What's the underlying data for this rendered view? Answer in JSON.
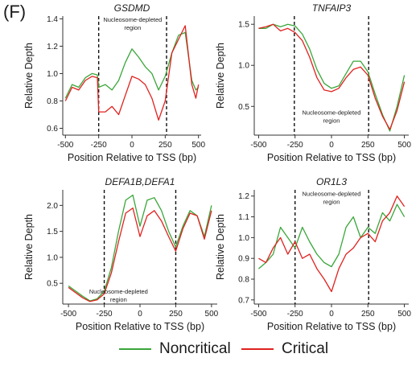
{
  "panel_label": "(F)",
  "colors": {
    "noncritical": "#3aa63a",
    "critical": "#e0221f"
  },
  "legend": [
    {
      "key": "noncritical",
      "label": "Noncritical"
    },
    {
      "key": "critical",
      "label": "Critical"
    }
  ],
  "chart_data": [
    {
      "type": "line",
      "title": "GSDMD",
      "xlabel": "Position Relative to TSS (bp)",
      "ylabel": "Relative Depth",
      "xlim": [
        -520,
        520
      ],
      "ylim": [
        0.55,
        1.42
      ],
      "xticks": [
        -500,
        -250,
        0,
        250,
        500
      ],
      "yticks": [
        0.6,
        0.8,
        1.0,
        1.2,
        1.4
      ],
      "ytick_labels": [
        "0.6",
        "0.8",
        "1.0",
        "1.2",
        "1.4"
      ],
      "vlines": [
        -250,
        260
      ],
      "annotation": {
        "text": [
          "Nucleosome-depleted",
          "region"
        ],
        "x": 5,
        "y": 1.38
      },
      "series": [
        {
          "name": "Noncritical",
          "color_key": "noncritical",
          "x": [
            -500,
            -450,
            -400,
            -350,
            -300,
            -260,
            -250,
            -200,
            -150,
            -100,
            -50,
            0,
            50,
            100,
            150,
            200,
            250,
            300,
            350,
            400,
            450,
            480,
            500
          ],
          "y": [
            0.82,
            0.92,
            0.9,
            0.97,
            1.0,
            0.99,
            0.9,
            0.92,
            0.88,
            0.95,
            1.08,
            1.18,
            1.12,
            1.05,
            1.0,
            0.88,
            0.98,
            1.15,
            1.28,
            1.3,
            0.95,
            0.88,
            0.9
          ]
        },
        {
          "name": "Critical",
          "color_key": "critical",
          "x": [
            -500,
            -450,
            -400,
            -350,
            -300,
            -260,
            -250,
            -200,
            -150,
            -100,
            -50,
            0,
            50,
            100,
            150,
            200,
            250,
            300,
            350,
            400,
            450,
            480,
            500
          ],
          "y": [
            0.8,
            0.9,
            0.88,
            0.95,
            0.98,
            0.97,
            0.72,
            0.72,
            0.76,
            0.7,
            0.84,
            0.98,
            0.96,
            0.92,
            0.82,
            0.66,
            0.8,
            1.15,
            1.25,
            1.35,
            0.92,
            0.82,
            0.92
          ]
        }
      ]
    },
    {
      "type": "line",
      "title": "TNFAIP3",
      "xlabel": "Position Relative to TSS (bp)",
      "ylabel": "Relative Depth",
      "xlim": [
        -530,
        530
      ],
      "ylim": [
        0.15,
        1.6
      ],
      "xticks": [
        -500,
        -250,
        0,
        250,
        500
      ],
      "yticks": [
        0.5,
        1.0,
        1.5
      ],
      "ytick_labels": [
        "0.5",
        "1.0",
        "1.5"
      ],
      "vlines": [
        -255,
        255
      ],
      "annotation": {
        "text": [
          "Nucleosome-depleted",
          "region"
        ],
        "x": 0,
        "y": 0.4
      },
      "series": [
        {
          "name": "Noncritical",
          "color_key": "noncritical",
          "x": [
            -500,
            -450,
            -400,
            -350,
            -300,
            -250,
            -200,
            -150,
            -100,
            -50,
            0,
            50,
            100,
            150,
            200,
            250,
            300,
            350,
            400,
            450,
            500
          ],
          "y": [
            1.45,
            1.45,
            1.5,
            1.47,
            1.5,
            1.48,
            1.38,
            1.2,
            0.95,
            0.78,
            0.72,
            0.75,
            0.9,
            1.05,
            1.05,
            0.92,
            0.65,
            0.4,
            0.2,
            0.5,
            0.88
          ]
        },
        {
          "name": "Critical",
          "color_key": "critical",
          "x": [
            -500,
            -450,
            -400,
            -350,
            -300,
            -250,
            -200,
            -150,
            -100,
            -50,
            0,
            50,
            100,
            150,
            200,
            250,
            300,
            350,
            400,
            450,
            500
          ],
          "y": [
            1.45,
            1.47,
            1.5,
            1.42,
            1.45,
            1.4,
            1.3,
            1.1,
            0.85,
            0.7,
            0.68,
            0.72,
            0.85,
            0.95,
            0.98,
            0.88,
            0.6,
            0.38,
            0.22,
            0.45,
            0.8
          ]
        }
      ]
    },
    {
      "type": "line",
      "title": "DEFA1B,DEFA1",
      "xlabel": "Position Relative to TSS (bp)",
      "ylabel": "Relative Depth",
      "xlim": [
        -540,
        540
      ],
      "ylim": [
        0.1,
        2.3
      ],
      "xticks": [
        -500,
        -250,
        0,
        250,
        500
      ],
      "yticks": [
        0.5,
        1.0,
        1.5,
        2.0
      ],
      "ytick_labels": [
        "0.5",
        "1.0",
        "1.5",
        "2.0"
      ],
      "vlines": [
        -250,
        250
      ],
      "annotation": {
        "text": [
          "Nucleosome-depleted",
          "region"
        ],
        "x": -150,
        "y": 0.3
      },
      "series": [
        {
          "name": "Noncritical",
          "color_key": "noncritical",
          "x": [
            -500,
            -450,
            -400,
            -350,
            -300,
            -250,
            -200,
            -150,
            -100,
            -50,
            0,
            50,
            100,
            150,
            200,
            250,
            300,
            350,
            400,
            450,
            500
          ],
          "y": [
            0.45,
            0.35,
            0.25,
            0.16,
            0.2,
            0.35,
            0.8,
            1.5,
            2.1,
            2.2,
            1.6,
            2.1,
            2.15,
            1.9,
            1.5,
            1.2,
            1.6,
            1.9,
            1.8,
            1.4,
            2.0
          ]
        },
        {
          "name": "Critical",
          "color_key": "critical",
          "x": [
            -500,
            -450,
            -400,
            -350,
            -300,
            -250,
            -200,
            -150,
            -100,
            -50,
            0,
            50,
            100,
            150,
            200,
            250,
            300,
            350,
            400,
            450,
            500
          ],
          "y": [
            0.42,
            0.32,
            0.22,
            0.15,
            0.18,
            0.3,
            0.7,
            1.3,
            1.85,
            1.95,
            1.4,
            1.8,
            1.9,
            1.7,
            1.4,
            1.12,
            1.55,
            1.85,
            1.8,
            1.35,
            1.9
          ]
        }
      ]
    },
    {
      "type": "line",
      "title": "OR1L3",
      "xlabel": "Position Relative to TSS (bp)",
      "ylabel": "Relative Depth",
      "xlim": [
        -530,
        530
      ],
      "ylim": [
        0.68,
        1.23
      ],
      "xticks": [
        -500,
        -250,
        0,
        250,
        500
      ],
      "yticks": [
        0.7,
        0.8,
        0.9,
        1.0,
        1.1,
        1.2
      ],
      "ytick_labels": [
        "0.7",
        "0.8",
        "0.9",
        "1.0",
        "1.1",
        "1.2"
      ],
      "vlines": [
        -250,
        255
      ],
      "annotation": {
        "text": [
          "Nucleosome-depleted",
          "region"
        ],
        "x": 0,
        "y": 1.2
      },
      "series": [
        {
          "name": "Noncritical",
          "color_key": "noncritical",
          "x": [
            -500,
            -450,
            -400,
            -350,
            -300,
            -250,
            -200,
            -150,
            -100,
            -50,
            0,
            50,
            100,
            150,
            200,
            250,
            300,
            350,
            400,
            450,
            500
          ],
          "y": [
            0.85,
            0.88,
            0.92,
            1.05,
            1.0,
            0.95,
            1.05,
            0.98,
            0.92,
            0.88,
            0.86,
            0.92,
            1.05,
            1.1,
            1.0,
            1.05,
            1.02,
            1.12,
            1.08,
            1.16,
            1.1
          ]
        },
        {
          "name": "Critical",
          "color_key": "critical",
          "x": [
            -500,
            -450,
            -400,
            -350,
            -300,
            -250,
            -200,
            -150,
            -100,
            -50,
            0,
            50,
            100,
            150,
            200,
            250,
            300,
            350,
            400,
            450,
            500
          ],
          "y": [
            0.9,
            0.88,
            0.95,
            1.0,
            0.92,
            0.98,
            0.9,
            0.92,
            0.85,
            0.8,
            0.74,
            0.85,
            0.92,
            0.95,
            1.0,
            1.02,
            0.98,
            1.08,
            1.12,
            1.2,
            1.15
          ]
        }
      ]
    }
  ]
}
